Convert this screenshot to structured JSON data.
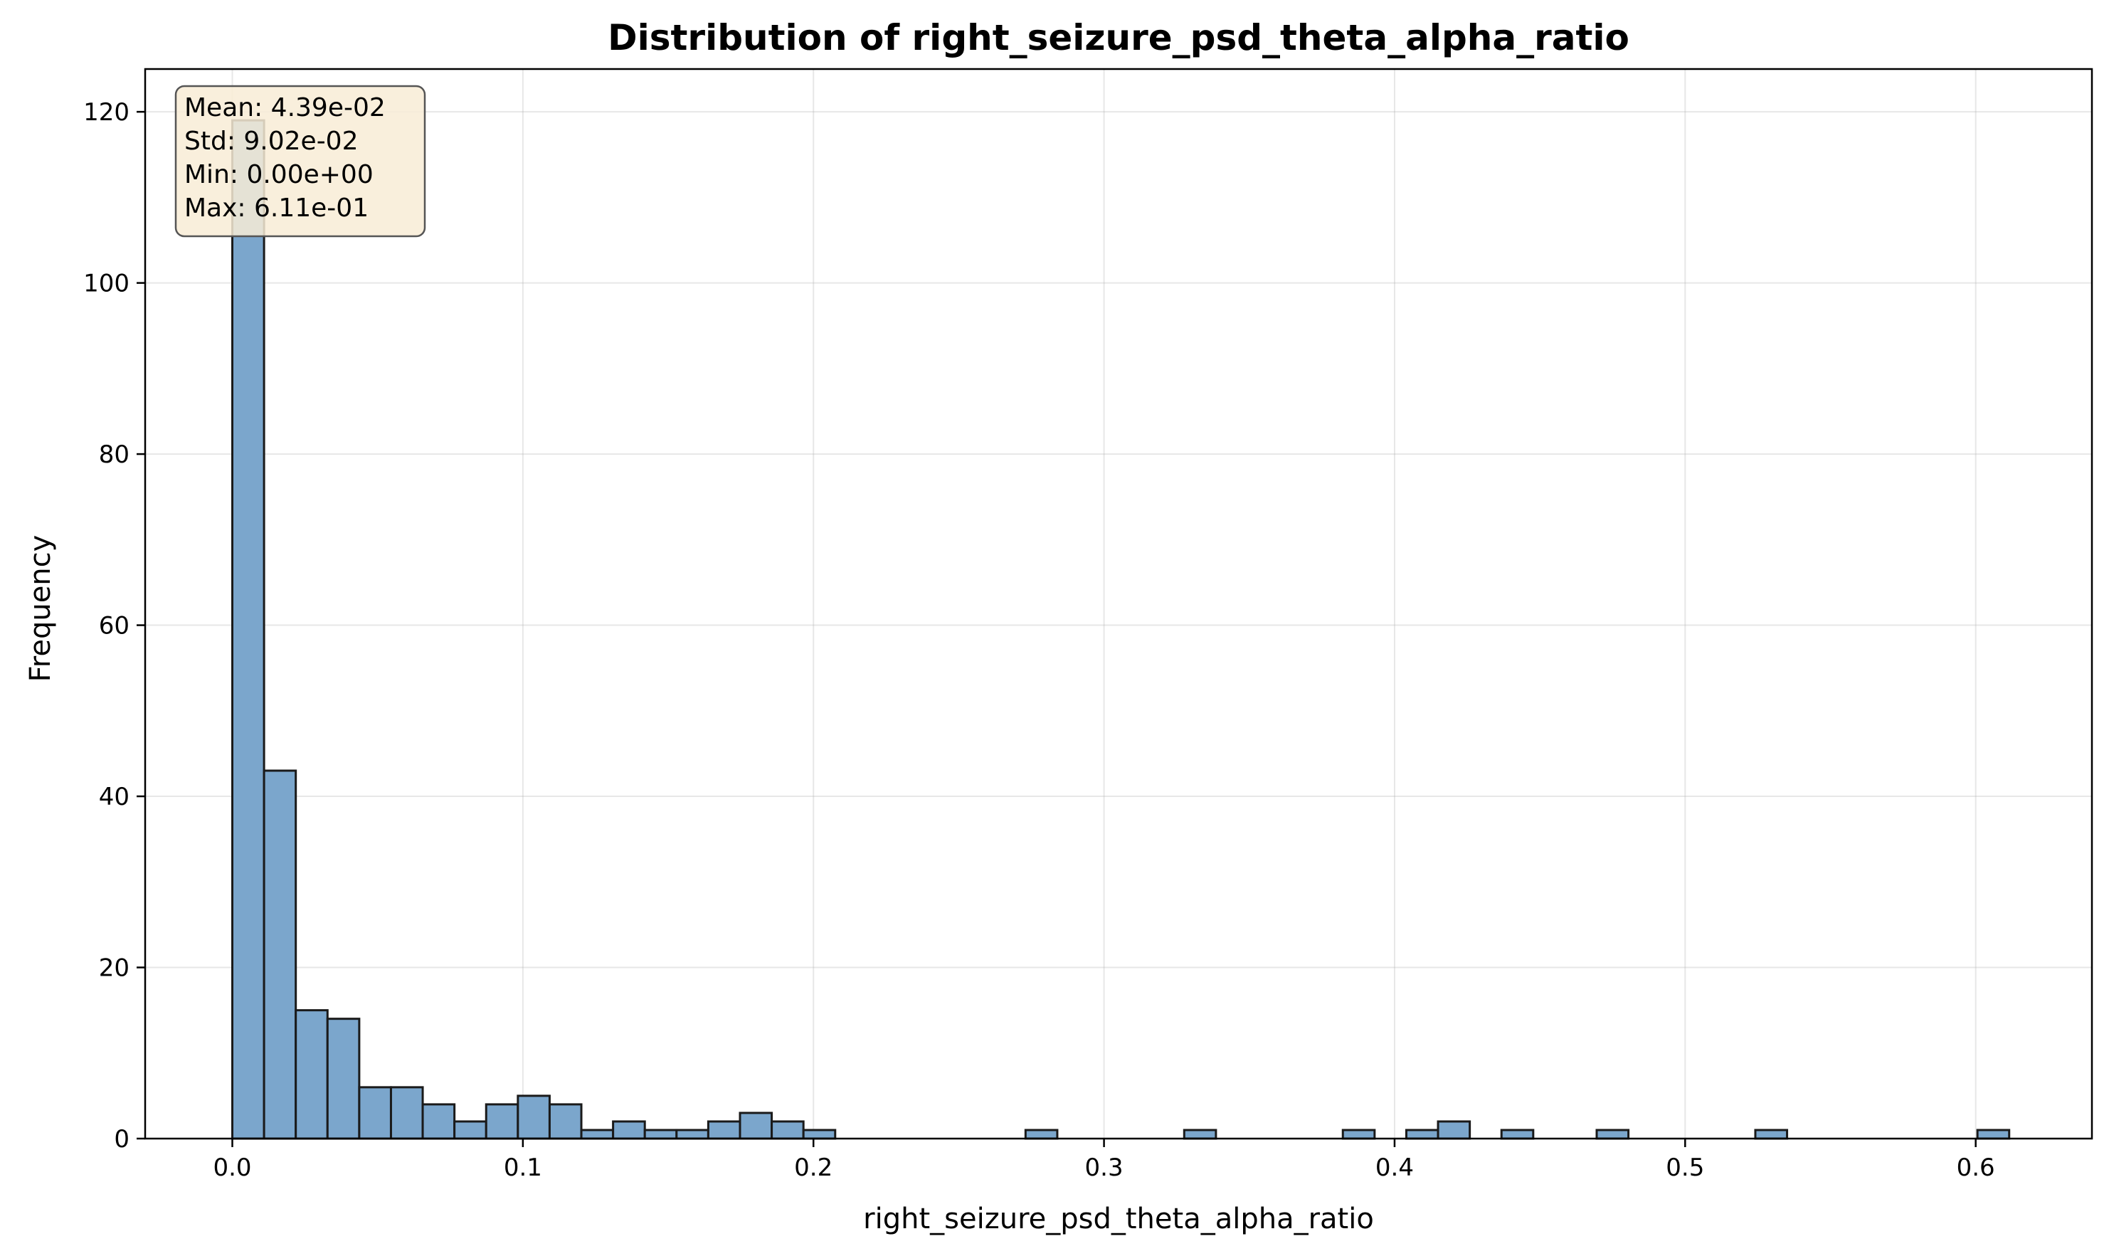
{
  "chart_data": {
    "type": "bar",
    "title": "Distribution of right_seizure_psd_theta_alpha_ratio",
    "xlabel": "right_seizure_psd_theta_alpha_ratio",
    "ylabel": "Frequency",
    "xlim": [
      -0.03,
      0.64
    ],
    "ylim": [
      0,
      125
    ],
    "x_ticks": [
      0.0,
      0.1,
      0.2,
      0.3,
      0.4,
      0.5,
      0.6
    ],
    "x_tick_labels": [
      "0.0",
      "0.1",
      "0.2",
      "0.3",
      "0.4",
      "0.5",
      "0.6"
    ],
    "y_ticks": [
      0,
      20,
      40,
      60,
      80,
      100,
      120
    ],
    "y_tick_labels": [
      "0",
      "20",
      "40",
      "60",
      "80",
      "100",
      "120"
    ],
    "bin_start": 0.0,
    "bin_width": 0.01092,
    "bin_counts": [
      119,
      43,
      15,
      14,
      6,
      6,
      4,
      2,
      4,
      5,
      4,
      1,
      2,
      1,
      1,
      2,
      3,
      2,
      1,
      0,
      0,
      0,
      0,
      0,
      0,
      1,
      0,
      0,
      0,
      0,
      1,
      0,
      0,
      0,
      0,
      1,
      0,
      1,
      2,
      0,
      1,
      0,
      0,
      1,
      0,
      0,
      0,
      0,
      1,
      0,
      0,
      0,
      0,
      0,
      0,
      1
    ],
    "grid": true,
    "bar_color": "#7ba6cc",
    "edge_color": "#1a1a1a",
    "stats_box": {
      "lines": [
        "Mean: 4.39e-02",
        "Std: 9.02e-02",
        "Min: 0.00e+00",
        "Max: 6.11e-01"
      ],
      "background": "#f8ecd6"
    }
  }
}
